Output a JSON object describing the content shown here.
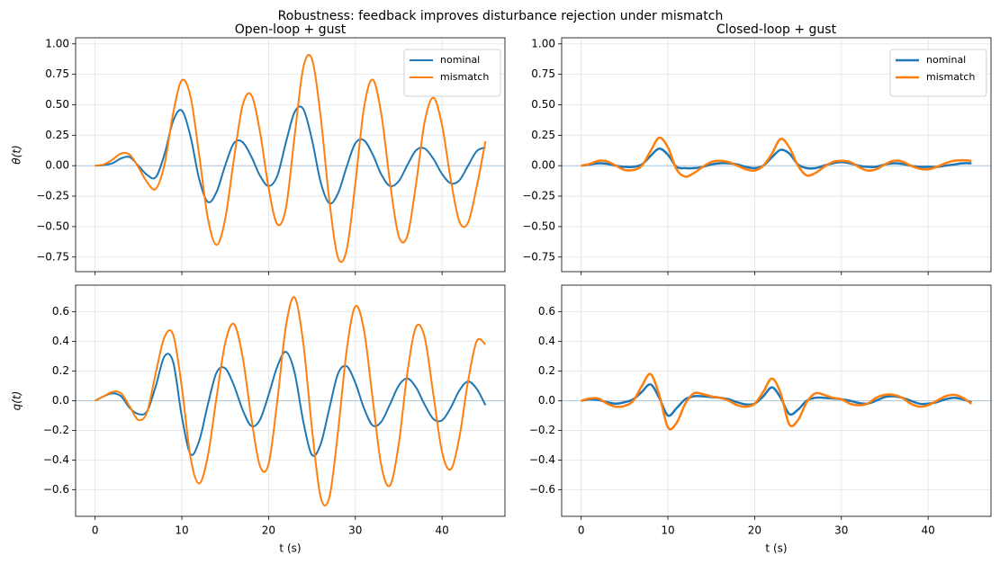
{
  "title": "Robustness: feedback improves disturbance rejection under mismatch",
  "chart_data": [
    {
      "type": "line",
      "title": "Open-loop + gust",
      "ylabel": "θ(t)",
      "legend": "upper right",
      "grid": true,
      "linewidth": 2,
      "xticklabels": false,
      "x": [
        0,
        1,
        2,
        3,
        4,
        5,
        6,
        7,
        8,
        9,
        10,
        11,
        12,
        13,
        14,
        15,
        16,
        17,
        18,
        19,
        20,
        21,
        22,
        23,
        24,
        25,
        26,
        27,
        28,
        29,
        30,
        31,
        32,
        33,
        34,
        35,
        36,
        37,
        38,
        39,
        40,
        41,
        42,
        43,
        44,
        45
      ],
      "series": [
        {
          "name": "nominal",
          "color": "#1f77b4",
          "values": [
            0,
            0.005,
            0.02,
            0.06,
            0.07,
            -0.002,
            -0.076,
            -0.094,
            0.093,
            0.368,
            0.453,
            0.239,
            -0.11,
            -0.298,
            -0.216,
            0.003,
            0.185,
            0.193,
            0.076,
            -0.081,
            -0.167,
            -0.084,
            0.191,
            0.44,
            0.465,
            0.214,
            -0.134,
            -0.308,
            -0.228,
            -0.009,
            0.184,
            0.208,
            0.092,
            -0.073,
            -0.167,
            -0.128,
            0.005,
            0.126,
            0.141,
            0.056,
            -0.068,
            -0.145,
            -0.12,
            0,
            0.12,
            0.15
          ]
        },
        {
          "name": "mismatch",
          "color": "#ff7f0e",
          "values": [
            0,
            0.01,
            0.05,
            0.1,
            0.09,
            -0.014,
            -0.136,
            -0.19,
            0.01,
            0.432,
            0.701,
            0.567,
            0.086,
            -0.432,
            -0.65,
            -0.437,
            0.054,
            0.494,
            0.581,
            0.281,
            -0.181,
            -0.481,
            -0.347,
            0.243,
            0.806,
            0.874,
            0.404,
            -0.284,
            -0.754,
            -0.692,
            -0.146,
            0.476,
            0.707,
            0.422,
            -0.14,
            -0.577,
            -0.577,
            -0.15,
            0.362,
            0.558,
            0.332,
            -0.114,
            -0.46,
            -0.467,
            -0.172,
            0.2
          ]
        }
      ],
      "xlim": [
        -2.25,
        47.25
      ],
      "xticks": [
        0,
        10,
        20,
        30,
        40
      ],
      "ylim": [
        -0.87,
        1.05
      ],
      "yticks": [
        {
          "value": -0.75,
          "label": "−0.75"
        },
        {
          "value": -0.5,
          "label": "−0.50"
        },
        {
          "value": -0.25,
          "label": "−0.25"
        },
        {
          "value": 0,
          "label": "0.00"
        },
        0.25,
        {
          "value": 0.5,
          "label": "0.50"
        },
        0.75,
        {
          "value": 1,
          "label": "1.00"
        }
      ]
    },
    {
      "type": "line",
      "title": "Closed-loop + gust",
      "legend": "upper right",
      "grid": true,
      "linewidth": 2.5,
      "xticklabels": false,
      "x": [
        0,
        1,
        2,
        3,
        4,
        5,
        6,
        7,
        8,
        9,
        10,
        11,
        12,
        13,
        14,
        15,
        16,
        17,
        18,
        19,
        20,
        21,
        22,
        23,
        24,
        25,
        26,
        27,
        28,
        29,
        30,
        31,
        32,
        33,
        34,
        35,
        36,
        37,
        38,
        39,
        40,
        41,
        42,
        43,
        44,
        45
      ],
      "series": [
        {
          "name": "nominal",
          "color": "#1f77b4",
          "values": [
            0,
            0.01,
            0.02,
            0.015,
            0,
            -0.01,
            -0.01,
            0.01,
            0.08,
            0.14,
            0.09,
            -0.01,
            -0.02,
            -0.02,
            -0.01,
            0.01,
            0.02,
            0.02,
            0.01,
            -0.01,
            -0.02,
            0,
            0.07,
            0.13,
            0.1,
            0.01,
            -0.02,
            -0.02,
            0,
            0.02,
            0.03,
            0.02,
            0,
            -0.01,
            -0.01,
            0.01,
            0.02,
            0.015,
            0,
            -0.01,
            -0.01,
            -0.01,
            0,
            0.01,
            0.02,
            0.02
          ]
        },
        {
          "name": "mismatch",
          "color": "#ff7f0e",
          "values": [
            0,
            0.015,
            0.04,
            0.035,
            0,
            -0.035,
            -0.035,
            0,
            0.12,
            0.23,
            0.15,
            -0.03,
            -0.09,
            -0.06,
            -0.01,
            0.03,
            0.04,
            0.03,
            0,
            -0.03,
            -0.04,
            0,
            0.1,
            0.22,
            0.15,
            0,
            -0.08,
            -0.06,
            -0.01,
            0.03,
            0.04,
            0.03,
            -0.01,
            -0.04,
            -0.03,
            0.01,
            0.04,
            0.035,
            0,
            -0.025,
            -0.03,
            -0.01,
            0.02,
            0.04,
            0.045,
            0.04
          ]
        }
      ],
      "xlim": [
        -2.25,
        47.25
      ],
      "xticks": [
        0,
        10,
        20,
        30,
        40
      ],
      "ylim": [
        -0.87,
        1.05
      ],
      "yticks": [
        {
          "value": -0.75,
          "label": "−0.75"
        },
        {
          "value": -0.5,
          "label": "−0.50"
        },
        {
          "value": -0.25,
          "label": "−0.25"
        },
        {
          "value": 0,
          "label": "0.00"
        },
        0.25,
        {
          "value": 0.5,
          "label": "0.50"
        },
        0.75,
        {
          "value": 1,
          "label": "1.00"
        }
      ]
    },
    {
      "type": "line",
      "ylabel": "q(t)",
      "xlabel": "t (s)",
      "grid": true,
      "linewidth": 2,
      "xticklabels": true,
      "x": [
        0,
        1,
        2,
        3,
        4,
        5,
        6,
        7,
        8,
        9,
        10,
        11,
        12,
        13,
        14,
        15,
        16,
        17,
        18,
        19,
        20,
        21,
        22,
        23,
        24,
        25,
        26,
        27,
        28,
        29,
        30,
        31,
        32,
        33,
        34,
        35,
        36,
        37,
        38,
        39,
        40,
        41,
        42,
        43,
        44,
        45
      ],
      "series": [
        {
          "name": "nominal",
          "color": "#1f77b4",
          "values": [
            0,
            0.03,
            0.05,
            0.03,
            -0.05,
            -0.09,
            -0.07,
            0.1,
            0.3,
            0.26,
            -0.108,
            -0.36,
            -0.27,
            -0.025,
            0.19,
            0.219,
            0.104,
            -0.06,
            -0.17,
            -0.129,
            0.039,
            0.23,
            0.33,
            0.19,
            -0.14,
            -0.365,
            -0.294,
            -0.053,
            0.182,
            0.233,
            0.121,
            -0.051,
            -0.167,
            -0.141,
            -0.024,
            0.102,
            0.15,
            0.09,
            -0.027,
            -0.123,
            -0.132,
            -0.047,
            0.07,
            0.13,
            0.08,
            -0.03
          ]
        },
        {
          "name": "mismatch",
          "color": "#ff7f0e",
          "values": [
            0,
            0.03,
            0.06,
            0.05,
            -0.04,
            -0.13,
            -0.075,
            0.19,
            0.43,
            0.444,
            0.09,
            -0.383,
            -0.558,
            -0.371,
            0.023,
            0.39,
            0.518,
            0.298,
            -0.111,
            -0.44,
            -0.427,
            -0.002,
            0.504,
            0.697,
            0.388,
            -0.188,
            -0.65,
            -0.652,
            -0.21,
            0.34,
            0.637,
            0.475,
            0.012,
            -0.44,
            -0.571,
            -0.294,
            0.19,
            0.498,
            0.426,
            0.04,
            -0.346,
            -0.463,
            -0.245,
            0.133,
            0.403,
            0.38
          ]
        }
      ],
      "xlim": [
        -2.25,
        47.25
      ],
      "xticks": [
        0,
        10,
        20,
        30,
        40
      ],
      "ylim": [
        -0.78,
        0.78
      ],
      "yticks": [
        {
          "value": -0.6,
          "label": "−0.6"
        },
        {
          "value": -0.4,
          "label": "−0.4"
        },
        {
          "value": -0.2,
          "label": "−0.2"
        },
        {
          "value": 0,
          "label": "0.0"
        },
        0.2,
        0.4,
        0.6
      ]
    },
    {
      "type": "line",
      "xlabel": "t (s)",
      "grid": true,
      "linewidth": 2.5,
      "xticklabels": true,
      "x": [
        0,
        1,
        2,
        3,
        4,
        5,
        6,
        7,
        8,
        9,
        10,
        11,
        12,
        13,
        14,
        15,
        16,
        17,
        18,
        19,
        20,
        21,
        22,
        23,
        24,
        25,
        26,
        27,
        28,
        29,
        30,
        31,
        32,
        33,
        34,
        35,
        36,
        37,
        38,
        39,
        40,
        41,
        42,
        43,
        44,
        45
      ],
      "series": [
        {
          "name": "nominal",
          "color": "#1f77b4",
          "values": [
            0,
            0.01,
            0.005,
            -0.01,
            -0.02,
            -0.01,
            0.01,
            0.06,
            0.11,
            0.02,
            -0.1,
            -0.05,
            0.01,
            0.03,
            0.03,
            0.025,
            0.02,
            0.01,
            -0.01,
            -0.025,
            -0.02,
            0.03,
            0.09,
            0.02,
            -0.09,
            -0.06,
            0,
            0.02,
            0.02,
            0.015,
            0.01,
            0,
            -0.015,
            -0.02,
            0,
            0.025,
            0.03,
            0.02,
            0,
            -0.02,
            -0.02,
            -0.01,
            0.01,
            0.02,
            0.01,
            -0.01
          ]
        },
        {
          "name": "mismatch",
          "color": "#ff7f0e",
          "values": [
            0,
            0.015,
            0.015,
            -0.02,
            -0.04,
            -0.035,
            0,
            0.1,
            0.18,
            0.04,
            -0.18,
            -0.15,
            -0.02,
            0.05,
            0.045,
            0.03,
            0.02,
            0,
            -0.03,
            -0.04,
            -0.02,
            0.06,
            0.15,
            0.05,
            -0.16,
            -0.13,
            -0.01,
            0.05,
            0.04,
            0.02,
            0.01,
            -0.02,
            -0.03,
            -0.02,
            0.02,
            0.04,
            0.04,
            0.02,
            -0.02,
            -0.04,
            -0.03,
            0,
            0.03,
            0.04,
            0.02,
            -0.02
          ]
        }
      ],
      "xlim": [
        -2.25,
        47.25
      ],
      "xticks": [
        0,
        10,
        20,
        30,
        40
      ],
      "ylim": [
        -0.78,
        0.78
      ],
      "yticks": [
        {
          "value": -0.6,
          "label": "−0.6"
        },
        {
          "value": -0.4,
          "label": "−0.4"
        },
        {
          "value": -0.2,
          "label": "−0.2"
        },
        {
          "value": 0,
          "label": "0.0"
        },
        0.2,
        0.4,
        0.6
      ]
    }
  ]
}
